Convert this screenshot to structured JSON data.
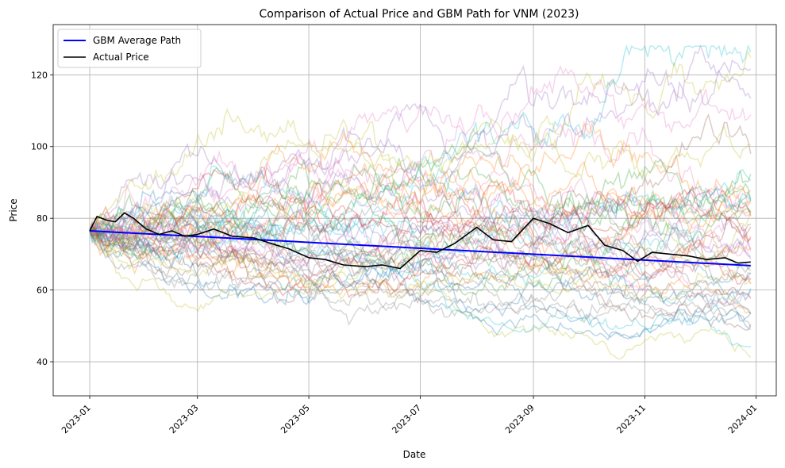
{
  "chart_data": {
    "type": "line",
    "title": "Comparison of Actual Price and GBM Path for VNM (2023)",
    "xlabel": "Date",
    "ylabel": "Price",
    "xlim": [
      "2022-12-12",
      "2024-01-12"
    ],
    "ylim": [
      30.5,
      134
    ],
    "x_ticks": [
      "2023-01",
      "2023-03",
      "2023-05",
      "2023-07",
      "2023-09",
      "2023-11",
      "2024-01"
    ],
    "x_tick_dates": [
      "2023-01-01",
      "2023-03-01",
      "2023-05-01",
      "2023-07-01",
      "2023-09-01",
      "2023-11-01",
      "2024-01-01"
    ],
    "y_ticks": [
      40,
      60,
      80,
      100,
      120
    ],
    "grid": true,
    "legend_position": "top-left",
    "legend": [
      "GBM Average Path",
      "Actual Price"
    ],
    "simulated_paths": {
      "count": 50,
      "start_value": 76.5,
      "end_range": [
        35,
        128
      ],
      "opacity": 0.3,
      "colors": [
        "#1f77b4",
        "#ff7f0e",
        "#2ca02c",
        "#d62728",
        "#9467bd",
        "#8c564b",
        "#e377c2",
        "#7f7f7f",
        "#bcbd22",
        "#17becf"
      ]
    },
    "series": [
      {
        "name": "GBM Average Path",
        "color": "#0000ff",
        "x": [
          "2023-01-01",
          "2023-12-29"
        ],
        "values": [
          76.5,
          66.8
        ]
      },
      {
        "name": "Actual Price",
        "color": "#000000",
        "x": [
          "2023-01-01",
          "2023-01-05",
          "2023-01-10",
          "2023-01-15",
          "2023-01-20",
          "2023-01-25",
          "2023-02-01",
          "2023-02-08",
          "2023-02-15",
          "2023-02-22",
          "2023-03-01",
          "2023-03-10",
          "2023-03-20",
          "2023-04-01",
          "2023-04-10",
          "2023-04-20",
          "2023-05-01",
          "2023-05-10",
          "2023-05-20",
          "2023-06-01",
          "2023-06-10",
          "2023-06-20",
          "2023-07-01",
          "2023-07-10",
          "2023-07-20",
          "2023-08-01",
          "2023-08-10",
          "2023-08-20",
          "2023-09-01",
          "2023-09-10",
          "2023-09-20",
          "2023-10-01",
          "2023-10-10",
          "2023-10-20",
          "2023-10-28",
          "2023-11-05",
          "2023-11-15",
          "2023-11-25",
          "2023-12-05",
          "2023-12-15",
          "2023-12-22",
          "2023-12-29"
        ],
        "values": [
          76.5,
          80.5,
          79.5,
          79.0,
          81.5,
          80.0,
          77.0,
          75.5,
          76.5,
          75.0,
          75.5,
          77.0,
          75.0,
          74.5,
          73.0,
          71.5,
          69.0,
          68.5,
          67.0,
          66.5,
          67.0,
          66.0,
          71.0,
          70.5,
          73.0,
          77.5,
          74.0,
          73.5,
          80.0,
          78.5,
          76.0,
          78.0,
          72.5,
          71.0,
          68.0,
          70.5,
          70.0,
          69.5,
          68.5,
          69.0,
          67.5,
          67.8
        ]
      }
    ]
  }
}
